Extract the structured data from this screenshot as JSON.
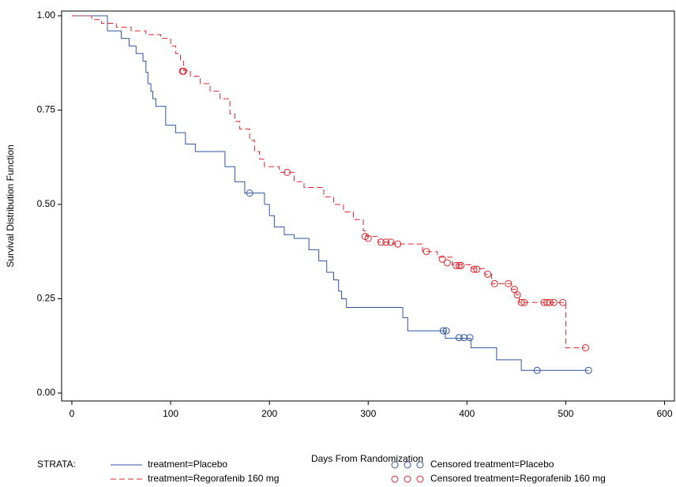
{
  "chart_data": {
    "type": "step",
    "x_label": "Days From Randomization",
    "y_label": "Survival Distribution Function",
    "legend_title": "STRATA:",
    "xlim": [
      -10.4,
      610
    ],
    "ylim": [
      -0.021,
      1.0125
    ],
    "xticks": [
      0,
      100,
      200,
      300,
      400,
      500,
      600
    ],
    "yticks": [
      {
        "value": 0,
        "label": "0.00"
      },
      {
        "value": 0.25,
        "label": "0.25"
      },
      {
        "value": 0.5,
        "label": "0.50"
      },
      {
        "value": 0.75,
        "label": "0.75"
      },
      {
        "value": 1,
        "label": "1.00"
      }
    ],
    "series": [
      {
        "name": "treatment=Placebo",
        "color": "#2f55a4",
        "dashed": false,
        "x": [
          0,
          36,
          50,
          58,
          65,
          72,
          75,
          77,
          80,
          82,
          85,
          95,
          105,
          115,
          125,
          140,
          155,
          165,
          175,
          195,
          200,
          205,
          215,
          225,
          240,
          250,
          258,
          265,
          270,
          273,
          278,
          335,
          340,
          378,
          404,
          430,
          455,
          523
        ],
        "values": [
          1.0,
          0.96,
          0.94,
          0.92,
          0.9,
          0.88,
          0.85,
          0.82,
          0.8,
          0.78,
          0.76,
          0.71,
          0.69,
          0.66,
          0.64,
          0.64,
          0.6,
          0.56,
          0.53,
          0.5,
          0.47,
          0.44,
          0.42,
          0.41,
          0.38,
          0.35,
          0.32,
          0.3,
          0.27,
          0.25,
          0.227,
          0.2,
          0.165,
          0.145,
          0.12,
          0.088,
          0.06,
          0.06
        ]
      },
      {
        "name": "treatment=Regorafenib 160 mg",
        "color": "#e0242b",
        "dashed": true,
        "x": [
          0,
          20,
          30,
          45,
          60,
          75,
          90,
          100,
          105,
          110,
          113,
          120,
          130,
          140,
          150,
          160,
          165,
          170,
          180,
          185,
          190,
          195,
          210,
          225,
          235,
          255,
          265,
          275,
          285,
          295,
          298,
          310,
          325,
          355,
          370,
          385,
          405,
          418,
          425,
          445,
          450,
          453,
          500,
          520
        ],
        "values": [
          1.0,
          0.99,
          0.98,
          0.97,
          0.96,
          0.95,
          0.94,
          0.92,
          0.9,
          0.88,
          0.855,
          0.84,
          0.82,
          0.8,
          0.78,
          0.74,
          0.72,
          0.7,
          0.67,
          0.64,
          0.62,
          0.6,
          0.585,
          0.56,
          0.545,
          0.52,
          0.5,
          0.48,
          0.46,
          0.43,
          0.415,
          0.4,
          0.395,
          0.375,
          0.36,
          0.34,
          0.33,
          0.315,
          0.29,
          0.275,
          0.26,
          0.24,
          0.12,
          0.12
        ]
      }
    ],
    "censored": [
      {
        "name": "Censored treatment=Placebo",
        "color": "#2f55a4",
        "x": [
          180,
          376,
          379,
          392,
          397,
          403,
          471,
          523
        ],
        "values": [
          0.53,
          0.165,
          0.165,
          0.147,
          0.147,
          0.147,
          0.06,
          0.06
        ]
      },
      {
        "name": "Censored treatment=Regorafenib 160 mg",
        "color": "#e0242b",
        "x": [
          112,
          113,
          218,
          297,
          300,
          313,
          318,
          323,
          330,
          359,
          375,
          380,
          389,
          392,
          394,
          407,
          410,
          421,
          428,
          442,
          448,
          451,
          455,
          458,
          478,
          481,
          484,
          488,
          497,
          520
        ],
        "values": [
          0.853,
          0.853,
          0.585,
          0.415,
          0.41,
          0.4,
          0.4,
          0.4,
          0.395,
          0.375,
          0.355,
          0.345,
          0.338,
          0.338,
          0.338,
          0.328,
          0.328,
          0.315,
          0.29,
          0.29,
          0.275,
          0.26,
          0.24,
          0.24,
          0.24,
          0.24,
          0.24,
          0.24,
          0.24,
          0.12
        ]
      }
    ]
  }
}
